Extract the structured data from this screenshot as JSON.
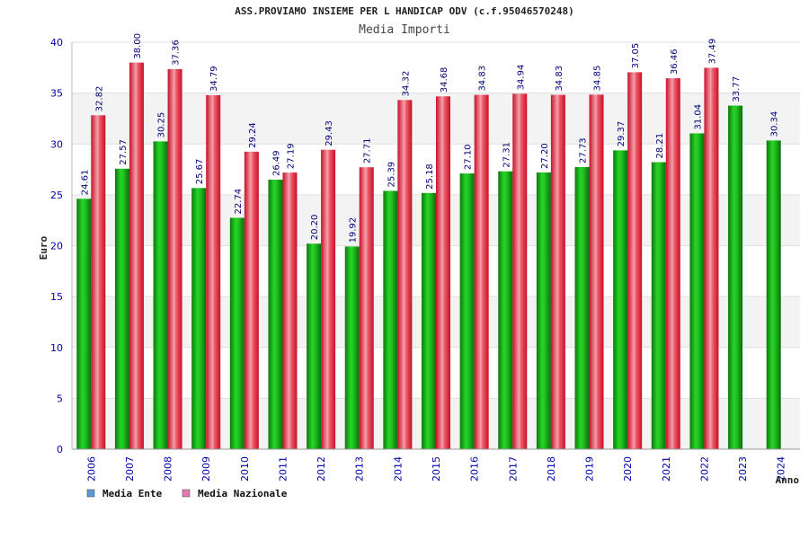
{
  "chart_data": {
    "type": "bar",
    "title": "ASS.PROVIAMO INSIEME PER L HANDICAP ODV (c.f.95046570248)",
    "subtitle": "Media Importi",
    "xlabel": "Anno",
    "ylabel": "Euro",
    "ylim": [
      0,
      40
    ],
    "yticks": [
      0,
      5,
      10,
      15,
      20,
      25,
      30,
      35,
      40
    ],
    "grid": true,
    "legend_position": "bottom-left",
    "categories": [
      "2006",
      "2007",
      "2008",
      "2009",
      "2010",
      "2011",
      "2012",
      "2013",
      "2014",
      "2015",
      "2016",
      "2017",
      "2018",
      "2019",
      "2020",
      "2021",
      "2022",
      "2023",
      "2024"
    ],
    "series": [
      {
        "name": "Media Ente",
        "legend_color": "#5b9bd5",
        "bar_color": "#1db41d",
        "values": [
          24.61,
          27.57,
          30.25,
          25.67,
          22.74,
          26.49,
          20.2,
          19.92,
          25.39,
          25.18,
          27.1,
          27.31,
          27.2,
          27.73,
          29.37,
          28.21,
          31.04,
          33.77,
          30.34
        ],
        "labels": [
          "24.61",
          "27.57",
          "30.25",
          "25.67",
          "22.74",
          "26.49",
          "20.20",
          "19.92",
          "25.39",
          "25.18",
          "27.10",
          "27.31",
          "27.20",
          "27.73",
          "29.37",
          "28.21",
          "31.04",
          "33.77",
          "30.34"
        ]
      },
      {
        "name": "Media Nazionale",
        "legend_color": "#e07ab4",
        "bar_color": "#e8283c",
        "values": [
          32.82,
          38.0,
          37.36,
          34.79,
          29.24,
          27.19,
          29.43,
          27.71,
          34.32,
          34.68,
          34.83,
          34.94,
          34.83,
          34.85,
          37.05,
          36.46,
          37.49,
          null,
          null
        ],
        "labels": [
          "32.82",
          "38.00",
          "37.36",
          "34.79",
          "29.24",
          "27.19",
          "29.43",
          "27.71",
          "34.32",
          "34.68",
          "34.83",
          "34.94",
          "34.83",
          "34.85",
          "37.05",
          "36.46",
          "37.49",
          null,
          null
        ]
      }
    ]
  }
}
